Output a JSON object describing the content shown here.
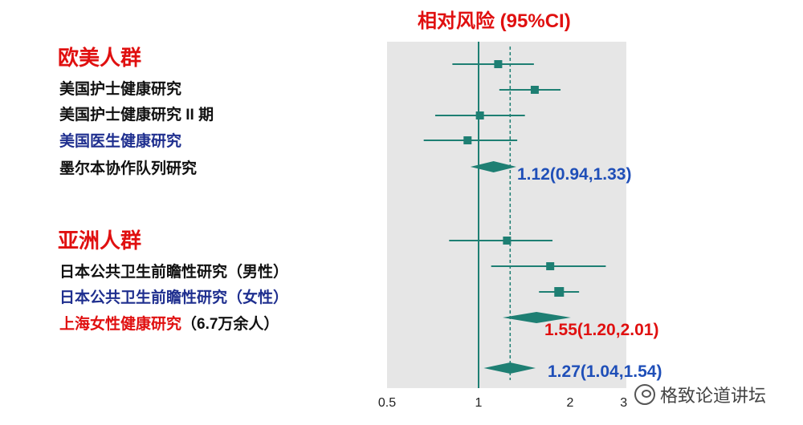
{
  "title": "相对风险 (95%CI)",
  "groups": [
    {
      "name": "欧美人群",
      "studies": [
        {
          "label": "美国护士健康研究",
          "color": "#111111"
        },
        {
          "label": "美国护士健康研究 II 期",
          "color": "#111111"
        },
        {
          "label": "美国医生健康研究",
          "color": "#1f2f8f"
        },
        {
          "label": "墨尔本协作队列研究",
          "color": "#111111"
        }
      ],
      "summary_label": "1.12(0.94,1.33)",
      "summary_color": "#1f4fb8"
    },
    {
      "name": "亚洲人群",
      "studies": [
        {
          "label": "日本公共卫生前瞻性研究（男性）",
          "color": "#111111"
        },
        {
          "label": "日本公共卫生前瞻性研究（女性）",
          "color": "#1f2f8f"
        },
        {
          "label": "上海女性健康研究",
          "note": "（6.7万余人）",
          "color": "#e01010"
        }
      ],
      "summary_label": "1.55(1.20,2.01)",
      "summary_color": "#e01010"
    }
  ],
  "overall_label": "1.27(1.04,1.54)",
  "overall_color": "#1f4fb8",
  "watermark": "格致论道讲坛",
  "colors": {
    "title": "#e01010",
    "group_title": "#e01010",
    "marker": "#1e7f73",
    "panel": "#e6e6e6"
  },
  "chart_data": {
    "type": "forest",
    "title": "相对风险 (95%CI)",
    "x_scale": "log",
    "xlim": [
      0.5,
      3
    ],
    "x_ticks": [
      0.5,
      1,
      2,
      3
    ],
    "x_tick_labels": [
      "0.5",
      "1",
      "2",
      "3"
    ],
    "reference_line": 1,
    "overall_estimate_line": 1.27,
    "rows": [
      {
        "kind": "study",
        "group": "欧美人群",
        "estimate": 1.16,
        "lower": 0.82,
        "upper": 1.52
      },
      {
        "kind": "study",
        "group": "欧美人群",
        "estimate": 1.53,
        "lower": 1.17,
        "upper": 1.86
      },
      {
        "kind": "study",
        "group": "欧美人群",
        "estimate": 1.01,
        "lower": 0.72,
        "upper": 1.42
      },
      {
        "kind": "study",
        "group": "欧美人群",
        "estimate": 0.92,
        "lower": 0.66,
        "upper": 1.34
      },
      {
        "kind": "summary",
        "group": "欧美人群",
        "estimate": 1.12,
        "lower": 0.94,
        "upper": 1.33
      },
      {
        "kind": "study",
        "group": "亚洲人群",
        "estimate": 1.24,
        "lower": 0.8,
        "upper": 1.75
      },
      {
        "kind": "study",
        "group": "亚洲人群",
        "estimate": 1.72,
        "lower": 1.1,
        "upper": 2.62
      },
      {
        "kind": "study",
        "group": "亚洲人群",
        "estimate": 1.84,
        "lower": 1.58,
        "upper": 2.14
      },
      {
        "kind": "summary",
        "group": "亚洲人群",
        "estimate": 1.55,
        "lower": 1.2,
        "upper": 2.01
      },
      {
        "kind": "summary",
        "group": "overall",
        "estimate": 1.27,
        "lower": 1.04,
        "upper": 1.54
      }
    ]
  }
}
